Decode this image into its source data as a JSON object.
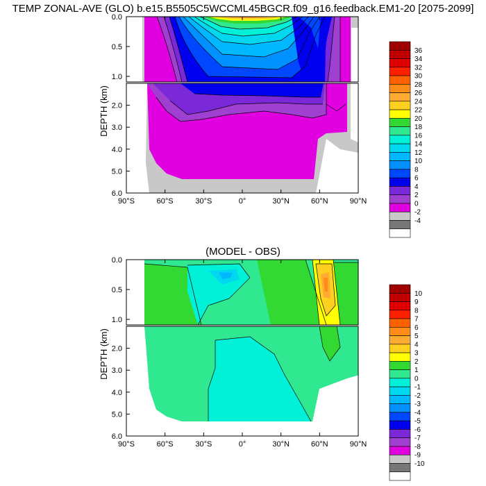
{
  "chart_data": [
    {
      "type": "heatmap",
      "title": "TEMP ZONAL-AVE (GLO) b.e15.B5505C5WCCML45BGCR.f09_g16.feedback.EM1-20 [2075-2099]",
      "ylabel": "DEPTH (km)",
      "xlabel": "",
      "x_ticks": [
        "90°S",
        "60°S",
        "30°S",
        "0°",
        "30°N",
        "60°N",
        "90°N"
      ],
      "y_ticks_upper": [
        "0.0",
        "0.5",
        "1.0"
      ],
      "y_ticks_lower": [
        "2.0",
        "3.0",
        "4.0",
        "5.0",
        "6.0"
      ],
      "xlim": [
        -90,
        90
      ],
      "ylim_km": [
        0,
        6
      ],
      "colorbar_levels": [
        36,
        34,
        32,
        30,
        28,
        26,
        24,
        22,
        20,
        18,
        16,
        14,
        12,
        10,
        8,
        6,
        4,
        2,
        0,
        -2,
        -4
      ],
      "colorbar_labels": [
        "36",
        "34",
        "32",
        "30",
        "28",
        "26",
        "24",
        "22",
        "20",
        "18",
        "16",
        "14",
        "12",
        "10",
        "8",
        "6",
        "4",
        "2",
        "0",
        "-2",
        "-4"
      ]
    },
    {
      "type": "heatmap",
      "title": "(MODEL - OBS)",
      "ylabel": "DEPTH (km)",
      "xlabel": "",
      "x_ticks": [
        "90°S",
        "60°S",
        "30°S",
        "0°",
        "30°N",
        "60°N",
        "90°N"
      ],
      "y_ticks_upper": [
        "0.0",
        "0.5",
        "1.0"
      ],
      "y_ticks_lower": [
        "2.0",
        "3.0",
        "4.0",
        "5.0",
        "6.0"
      ],
      "xlim": [
        -90,
        90
      ],
      "ylim_km": [
        0,
        6
      ],
      "colorbar_levels": [
        10,
        9,
        8,
        7,
        6,
        5,
        4,
        3,
        2,
        1,
        0,
        -1,
        -2,
        -3,
        -4,
        -5,
        -6,
        -7,
        -8,
        -9,
        -10
      ],
      "colorbar_labels": [
        "10",
        "9",
        "8",
        "7",
        "6",
        "5",
        "4",
        "3",
        "2",
        "1",
        "0",
        "-1",
        "-2",
        "-3",
        "-4",
        "-5",
        "-6",
        "-7",
        "-8",
        "-9",
        "-10"
      ]
    }
  ],
  "colors": {
    "land": "#ffffff",
    "bottom_gray": "#c8c8c8",
    "dark_gray": "#777777",
    "palette_top": [
      "#a00000",
      "#c00000",
      "#e00000",
      "#ff2000",
      "#ff6000",
      "#ff8c18",
      "#ffaa30",
      "#ffd020",
      "#ffff00",
      "#33d933",
      "#30e890",
      "#00f0d8",
      "#00d8f0",
      "#00b8ff",
      "#0090ff",
      "#0048ff",
      "#0000ee",
      "#7a28d8",
      "#a040d0",
      "#e000e0",
      "#c8c8c8",
      "#777777",
      "#ffffff"
    ],
    "palette_diff": [
      "#a00000",
      "#c00000",
      "#e00000",
      "#ff2000",
      "#ff6000",
      "#ff8c18",
      "#ffaa30",
      "#ffd020",
      "#ffff00",
      "#33d933",
      "#30e890",
      "#00f0d8",
      "#00d8f0",
      "#00b8ff",
      "#0090ff",
      "#0048ff",
      "#0000ee",
      "#7a28d8",
      "#a040d0",
      "#e000e0",
      "#c8c8c8",
      "#777777",
      "#ffffff"
    ]
  }
}
